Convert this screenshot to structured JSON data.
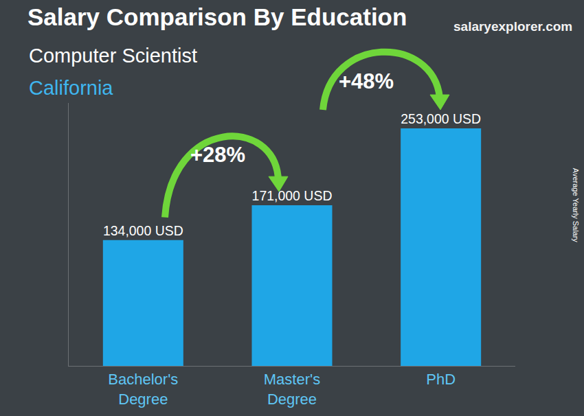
{
  "chart_data": {
    "type": "bar",
    "title": "Salary Comparison By Education",
    "subtitle": "Computer Scientist",
    "location": "California",
    "source": "salaryexplorer.com",
    "y_label": "Average Yearly Salary",
    "categories": [
      "Bachelor's Degree",
      "Master's Degree",
      "PhD"
    ],
    "values": [
      134000,
      171000,
      253000
    ],
    "value_labels": [
      "134,000 USD",
      "171,000 USD",
      "253,000 USD"
    ],
    "data_labels": true,
    "color": "#1fa6e6",
    "ylim": [
      0,
      280000
    ],
    "tick_labels": "x",
    "grid": false,
    "annotations": [
      {
        "text": "+28%",
        "from": "Bachelor's Degree",
        "to": "Master's Degree"
      },
      {
        "text": "+48%",
        "from": "Master's Degree",
        "to": "PhD"
      }
    ]
  }
}
